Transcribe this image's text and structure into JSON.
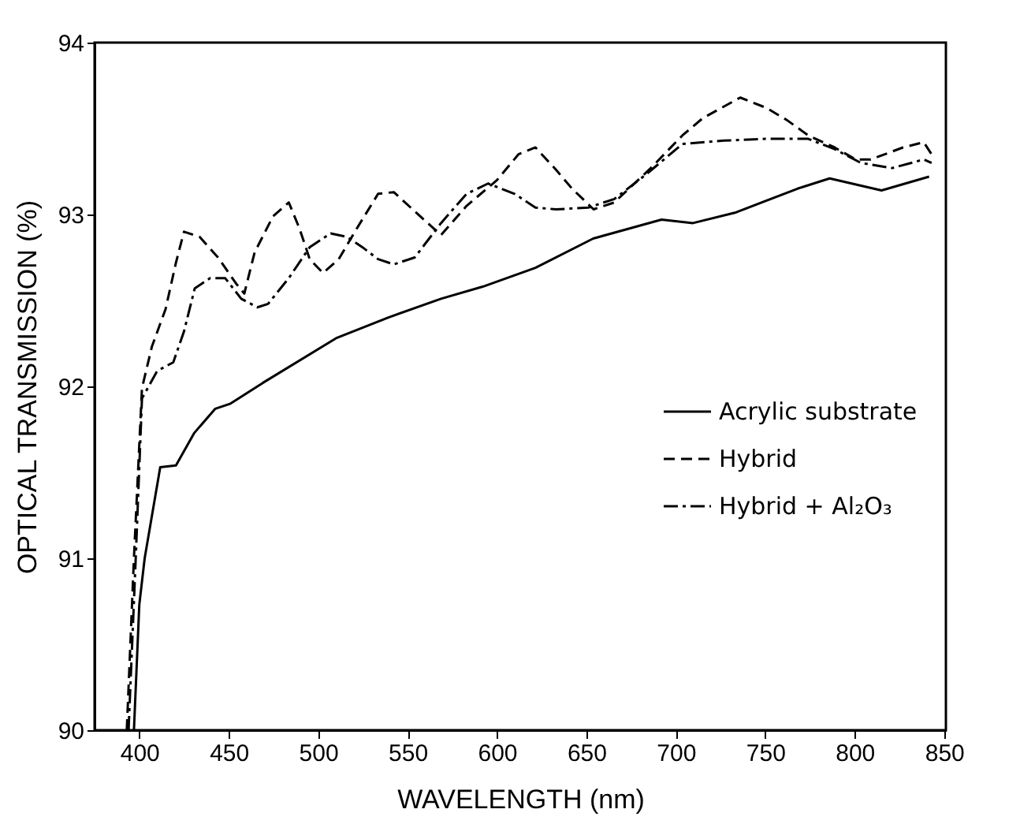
{
  "chart_data": {
    "type": "line",
    "xlabel": "WAVELENGTH (nm)",
    "ylabel": "OPTICAL TRANSMISSION (%)",
    "xlim": [
      375,
      851
    ],
    "ylim": [
      90,
      94
    ],
    "xticks": [
      400,
      450,
      500,
      550,
      600,
      650,
      700,
      750,
      800,
      850
    ],
    "yticks": [
      90,
      91,
      92,
      93,
      94
    ],
    "grid": false,
    "legend": "right",
    "marker": "none",
    "series": [
      {
        "name": "Acrylic substrate",
        "color": "#000000",
        "line_style": "solid",
        "x": [
          397,
          400,
          403,
          411.7,
          420.5,
          430.8,
          442.5,
          451,
          469,
          510,
          539,
          568.7,
          592,
          621.5,
          653.8,
          692,
          709.6,
          733,
          768,
          786,
          815,
          841.6
        ],
        "values": [
          90,
          90.73,
          91.0,
          91.53,
          91.54,
          91.73,
          91.87,
          91.9,
          92.02,
          92.28,
          92.4,
          92.51,
          92.58,
          92.69,
          92.86,
          92.97,
          92.95,
          93.01,
          93.15,
          93.21,
          93.14,
          93.22
        ]
      },
      {
        "name": "Hybrid",
        "color": "#000000",
        "line_style": "dashed",
        "x": [
          393,
          397,
          401.5,
          407,
          414.7,
          420.5,
          425,
          433.7,
          444,
          454,
          458.7,
          464.5,
          474.8,
          483.6,
          489.5,
          495.3,
          502.7,
          511.5,
          521.7,
          533.5,
          542.3,
          557,
          568.7,
          583,
          600,
          612,
          621.5,
          633,
          642,
          654,
          665.6,
          686,
          703.7,
          715,
          736,
          750.6,
          762,
          774,
          788.8,
          800.5,
          809,
          827,
          838.6,
          843
        ],
        "values": [
          90,
          91.0,
          91.99,
          92.23,
          92.45,
          92.72,
          92.9,
          92.87,
          92.75,
          92.6,
          92.54,
          92.78,
          92.99,
          93.07,
          92.92,
          92.74,
          92.66,
          92.74,
          92.92,
          93.12,
          93.13,
          92.99,
          92.88,
          93.05,
          93.2,
          93.35,
          93.39,
          93.26,
          93.15,
          93.03,
          93.07,
          93.27,
          93.46,
          93.56,
          93.68,
          93.62,
          93.55,
          93.46,
          93.39,
          93.32,
          93.32,
          93.39,
          93.42,
          93.35
        ]
      },
      {
        "name": "Hybrid + Al₂O₃",
        "color": "#000000",
        "line_style": "dashdot",
        "x": [
          394,
          398,
          401.5,
          410,
          419,
          425,
          431,
          439.6,
          448,
          457,
          466,
          472,
          483.6,
          495.3,
          507,
          516,
          524.7,
          533.5,
          542.3,
          554,
          568.7,
          583,
          595,
          609.8,
          621.5,
          633,
          651,
          665.6,
          683,
          703.7,
          727,
          750.6,
          774,
          788.8,
          803.5,
          821,
          838.6,
          843
        ],
        "values": [
          90,
          91.0,
          91.93,
          92.09,
          92.14,
          92.32,
          92.57,
          92.63,
          92.63,
          92.51,
          92.46,
          92.48,
          92.63,
          92.81,
          92.89,
          92.87,
          92.81,
          92.74,
          92.71,
          92.75,
          92.95,
          93.12,
          93.18,
          93.12,
          93.04,
          93.03,
          93.04,
          93.09,
          93.23,
          93.41,
          93.43,
          93.44,
          93.44,
          93.38,
          93.3,
          93.27,
          93.32,
          93.3
        ]
      }
    ]
  }
}
